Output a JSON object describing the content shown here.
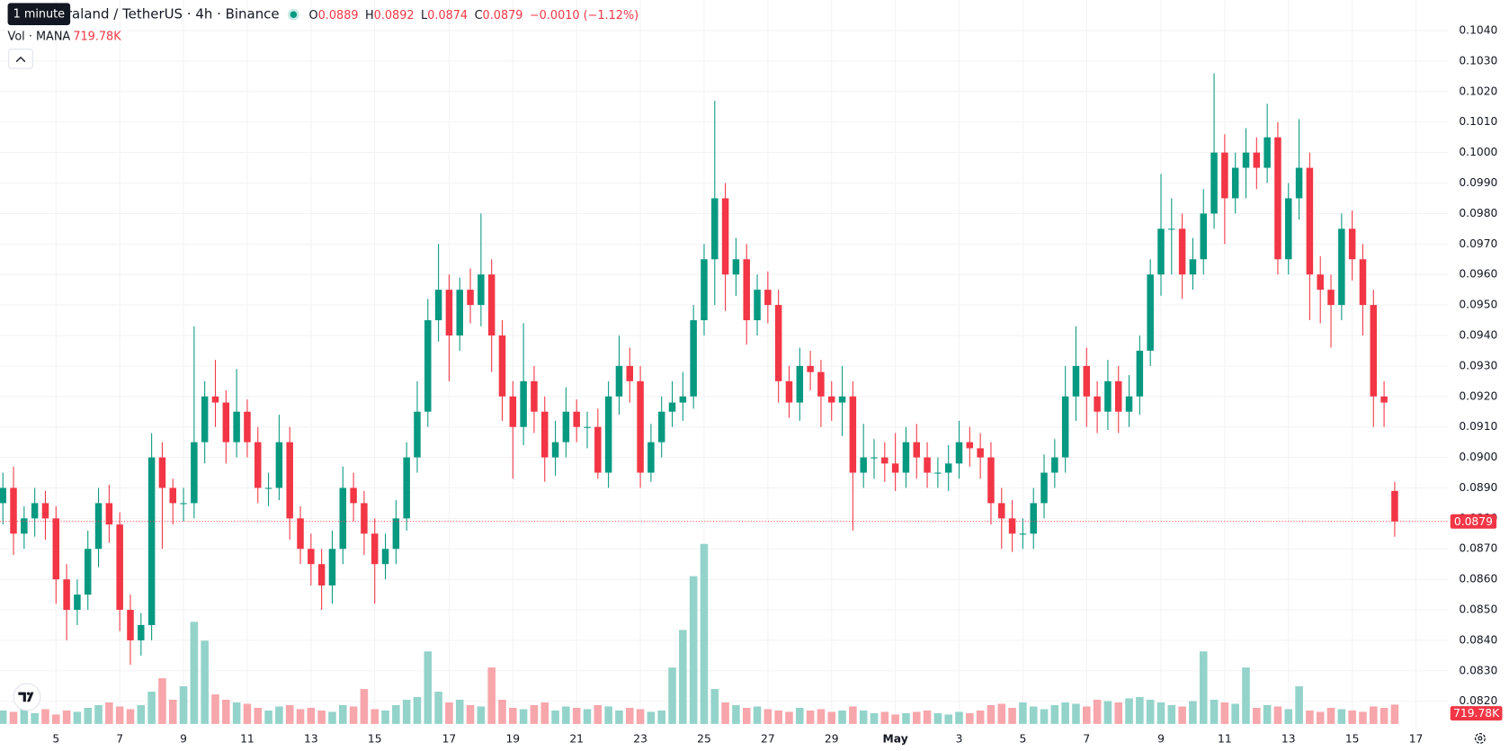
{
  "chart_data": {
    "type": "candlestick",
    "title": "Decentraland / TetherUS · 4h · Binance",
    "tooltip": "1 minute",
    "ohlc_labels": [
      "O",
      "H",
      "L",
      "C"
    ],
    "change": "−0.0010 (−1.12%)",
    "volume_title": "Vol · MANA",
    "up_color": "#089981",
    "down_color": "#f23645",
    "volume_up_color": "#93d3ca",
    "volume_down_color": "#f7a6ab",
    "grid": true,
    "categories": [
      null,
      null,
      null,
      null,
      null,
      "5",
      null,
      null,
      null,
      null,
      null,
      "7",
      null,
      null,
      null,
      null,
      null,
      "9",
      null,
      null,
      null,
      null,
      null,
      "11",
      null,
      null,
      null,
      null,
      null,
      "13",
      null,
      null,
      null,
      null,
      null,
      "15",
      null,
      null,
      null,
      null,
      null,
      null,
      "17",
      null,
      null,
      null,
      null,
      null,
      "19",
      null,
      null,
      null,
      null,
      null,
      "21",
      null,
      null,
      null,
      null,
      null,
      "23",
      null,
      null,
      null,
      null,
      null,
      "25",
      null,
      null,
      null,
      null,
      null,
      "27",
      null,
      null,
      null,
      null,
      null,
      "29",
      null,
      null,
      null,
      null,
      null,
      "May",
      null,
      null,
      null,
      null,
      null,
      "3",
      null,
      null,
      null,
      null,
      null,
      "5",
      null,
      null,
      null,
      null,
      null,
      "7",
      null,
      null,
      null,
      null,
      null,
      null,
      "9",
      null,
      null,
      null,
      null,
      null,
      "11",
      null,
      null,
      null,
      null,
      null,
      "13",
      null,
      null,
      null,
      null,
      null,
      "15",
      null,
      null,
      null,
      null,
      null,
      "17"
    ],
    "open": [
      0.0885,
      0.089,
      0.0875,
      0.088,
      0.0885,
      0.088,
      0.086,
      0.085,
      0.0855,
      0.087,
      0.0885,
      0.0878,
      0.085,
      0.084,
      0.0845,
      0.09,
      0.089,
      0.0885,
      0.0885,
      0.0905,
      0.092,
      0.0918,
      0.0905,
      0.0915,
      0.0905,
      0.089,
      0.089,
      0.0905,
      0.088,
      0.087,
      0.0865,
      0.0858,
      0.087,
      0.089,
      0.0885,
      0.0875,
      0.0865,
      0.087,
      0.088,
      0.09,
      0.0915,
      0.0945,
      0.0955,
      0.094,
      0.0955,
      0.095,
      0.096,
      0.094,
      0.092,
      0.091,
      0.0925,
      0.0915,
      0.09,
      0.0905,
      0.0915,
      0.091,
      0.091,
      0.0895,
      0.092,
      0.093,
      0.0925,
      0.0895,
      0.0905,
      0.0915,
      0.0918,
      0.092,
      0.0945,
      0.0965,
      0.0985,
      0.096,
      0.0965,
      0.0945,
      0.0955,
      0.095,
      0.0925,
      0.0918,
      0.093,
      0.0928,
      0.092,
      0.0918,
      0.092,
      0.0895,
      0.09,
      0.09,
      0.0898,
      0.0895,
      0.0905,
      0.09,
      0.0895,
      0.0895,
      0.0898,
      0.0905,
      0.0903,
      0.09,
      0.0885,
      0.088,
      0.0875,
      0.0875,
      0.0885,
      0.0895,
      0.09,
      0.092,
      0.093,
      0.092,
      0.0915,
      0.0925,
      0.0915,
      0.092,
      0.0935,
      0.096,
      0.0975,
      0.0975,
      0.096,
      0.0965,
      0.098,
      0.1,
      0.0985,
      0.0995,
      0.1,
      0.0995,
      0.1005,
      0.0965,
      0.0985,
      0.0995,
      0.096,
      0.0955,
      0.095,
      0.0975,
      0.0965,
      0.095,
      0.092,
      0.0889,
      null,
      null
    ],
    "high": [
      0.0895,
      0.0897,
      0.0884,
      0.089,
      0.0889,
      0.0884,
      0.0865,
      0.086,
      0.0876,
      0.089,
      0.0891,
      0.0882,
      0.0855,
      0.0849,
      0.0908,
      0.0905,
      0.0893,
      0.089,
      0.0943,
      0.0925,
      0.0932,
      0.0922,
      0.0929,
      0.0919,
      0.091,
      0.0895,
      0.0914,
      0.091,
      0.0884,
      0.0875,
      0.087,
      0.0876,
      0.0897,
      0.0895,
      0.0889,
      0.088,
      0.0875,
      0.0886,
      0.0905,
      0.0925,
      0.0952,
      0.097,
      0.096,
      0.0959,
      0.0962,
      0.098,
      0.0965,
      0.0945,
      0.0925,
      0.0944,
      0.093,
      0.092,
      0.0912,
      0.0923,
      0.0919,
      0.0915,
      0.0916,
      0.0925,
      0.094,
      0.0936,
      0.093,
      0.0911,
      0.092,
      0.0925,
      0.0928,
      0.095,
      0.097,
      0.1017,
      0.099,
      0.0972,
      0.097,
      0.096,
      0.0961,
      0.0955,
      0.093,
      0.0936,
      0.0935,
      0.0932,
      0.0925,
      0.093,
      0.0925,
      0.0911,
      0.0906,
      0.0905,
      0.0908,
      0.091,
      0.0911,
      0.0905,
      0.09,
      0.0904,
      0.0912,
      0.091,
      0.0908,
      0.0905,
      0.089,
      0.0886,
      0.088,
      0.089,
      0.0901,
      0.0906,
      0.093,
      0.0943,
      0.0936,
      0.0925,
      0.0932,
      0.093,
      0.0927,
      0.094,
      0.0965,
      0.0993,
      0.0985,
      0.098,
      0.0972,
      0.0988,
      0.1026,
      0.1006,
      0.1,
      0.1008,
      0.1005,
      0.1016,
      0.101,
      0.099,
      0.1011,
      0.1,
      0.0966,
      0.096,
      0.098,
      0.0981,
      0.097,
      0.0955,
      0.0925,
      0.0892,
      null,
      null
    ],
    "low": [
      0.0878,
      0.0868,
      0.087,
      0.0874,
      0.0873,
      0.0852,
      0.084,
      0.0845,
      0.085,
      0.0864,
      0.0872,
      0.0843,
      0.0832,
      0.0835,
      0.084,
      0.087,
      0.0878,
      0.0879,
      0.088,
      0.0898,
      0.091,
      0.0898,
      0.09,
      0.09,
      0.0885,
      0.0884,
      0.0886,
      0.0873,
      0.0865,
      0.0858,
      0.085,
      0.0852,
      0.0865,
      0.0879,
      0.0868,
      0.0852,
      0.086,
      0.0865,
      0.0876,
      0.0895,
      0.091,
      0.0938,
      0.0925,
      0.0935,
      0.0944,
      0.0943,
      0.0928,
      0.0912,
      0.0893,
      0.0904,
      0.0908,
      0.0892,
      0.0894,
      0.09,
      0.0905,
      0.0903,
      0.0893,
      0.089,
      0.0914,
      0.0918,
      0.089,
      0.0892,
      0.09,
      0.091,
      0.0912,
      0.0916,
      0.094,
      0.095,
      0.0948,
      0.0953,
      0.0937,
      0.094,
      0.0944,
      0.0918,
      0.0913,
      0.0912,
      0.0922,
      0.091,
      0.0912,
      0.0907,
      0.0876,
      0.089,
      0.0893,
      0.0892,
      0.0889,
      0.089,
      0.0893,
      0.089,
      0.089,
      0.0889,
      0.0893,
      0.0897,
      0.0893,
      0.0878,
      0.087,
      0.0869,
      0.087,
      0.087,
      0.088,
      0.089,
      0.0895,
      0.0912,
      0.091,
      0.0908,
      0.0909,
      0.0908,
      0.091,
      0.0914,
      0.093,
      0.0953,
      0.096,
      0.0952,
      0.0955,
      0.096,
      0.0975,
      0.097,
      0.098,
      0.0985,
      0.0988,
      0.099,
      0.096,
      0.096,
      0.0978,
      0.0945,
      0.0944,
      0.0936,
      0.0945,
      0.0958,
      0.094,
      0.091,
      0.091,
      0.0874,
      null,
      null
    ],
    "close": [
      0.089,
      0.0875,
      0.088,
      0.0885,
      0.088,
      0.086,
      0.085,
      0.0855,
      0.087,
      0.0885,
      0.0878,
      0.085,
      0.084,
      0.0845,
      0.09,
      0.089,
      0.0885,
      0.0885,
      0.0905,
      0.092,
      0.0918,
      0.0905,
      0.0915,
      0.0905,
      0.089,
      0.089,
      0.0905,
      0.088,
      0.087,
      0.0865,
      0.0858,
      0.087,
      0.089,
      0.0885,
      0.0875,
      0.0865,
      0.087,
      0.088,
      0.09,
      0.0915,
      0.0945,
      0.0955,
      0.094,
      0.0955,
      0.095,
      0.096,
      0.094,
      0.092,
      0.091,
      0.0925,
      0.0915,
      0.09,
      0.0905,
      0.0915,
      0.091,
      0.091,
      0.0895,
      0.092,
      0.093,
      0.0925,
      0.0895,
      0.0905,
      0.0915,
      0.0918,
      0.092,
      0.0945,
      0.0965,
      0.0985,
      0.096,
      0.0965,
      0.0945,
      0.0955,
      0.095,
      0.0925,
      0.0918,
      0.093,
      0.0928,
      0.092,
      0.0918,
      0.092,
      0.0895,
      0.09,
      0.09,
      0.0898,
      0.0895,
      0.0905,
      0.09,
      0.0895,
      0.0895,
      0.0898,
      0.0905,
      0.0903,
      0.09,
      0.0885,
      0.088,
      0.0875,
      0.0875,
      0.0885,
      0.0895,
      0.09,
      0.092,
      0.093,
      0.092,
      0.0915,
      0.0925,
      0.0915,
      0.092,
      0.0935,
      0.096,
      0.0975,
      0.0975,
      0.096,
      0.0965,
      0.098,
      0.1,
      0.0985,
      0.0995,
      0.1,
      0.0995,
      0.1005,
      0.0965,
      0.0985,
      0.0995,
      0.096,
      0.0955,
      0.095,
      0.0975,
      0.0965,
      0.095,
      0.092,
      0.0918,
      0.0879,
      null,
      null
    ],
    "volume": [
      500000,
      450000,
      600000,
      400000,
      550000,
      350000,
      500000,
      450000,
      600000,
      700000,
      800000,
      650000,
      550000,
      700000,
      1200000,
      1700000,
      900000,
      1400000,
      3800000,
      3100000,
      1100000,
      900000,
      800000,
      750000,
      600000,
      500000,
      650000,
      700000,
      550000,
      600000,
      500000,
      450000,
      700000,
      650000,
      1300000,
      550000,
      500000,
      700000,
      900000,
      1000000,
      2700000,
      1200000,
      800000,
      900000,
      700000,
      650000,
      2100000,
      900000,
      600000,
      550000,
      700000,
      800000,
      500000,
      650000,
      600000,
      550000,
      700000,
      650000,
      500000,
      600000,
      550000,
      450000,
      500000,
      2100000,
      3500000,
      5500000,
      6700000,
      1300000,
      800000,
      700000,
      600000,
      650000,
      550000,
      500000,
      450000,
      600000,
      500000,
      550000,
      450000,
      500000,
      650000,
      500000,
      400000,
      450000,
      350000,
      400000,
      450000,
      500000,
      400000,
      350000,
      450000,
      400000,
      500000,
      700000,
      750000,
      600000,
      800000,
      650000,
      550000,
      700000,
      800000,
      750000,
      650000,
      900000,
      850000,
      800000,
      950000,
      1000000,
      900000,
      800000,
      700000,
      650000,
      850000,
      2700000,
      900000,
      800000,
      750000,
      2100000,
      600000,
      700000,
      650000,
      550000,
      1400000,
      500000,
      450000,
      600000,
      550000,
      500000,
      450000,
      650000,
      600000,
      719780,
      null,
      null
    ],
    "volume_value_labels": [
      null,
      null,
      null,
      null,
      null,
      null,
      null,
      null,
      null,
      null,
      null,
      null,
      null,
      null,
      null,
      null,
      null,
      null,
      null,
      null,
      null,
      null,
      null,
      null,
      null,
      null,
      null,
      null,
      null,
      null,
      null,
      null,
      null,
      null,
      null,
      null,
      null,
      null,
      null,
      null,
      null,
      null,
      null,
      null,
      null,
      null,
      null,
      null,
      null,
      null,
      null,
      null,
      null,
      null,
      null,
      null,
      null,
      null,
      null,
      null,
      null,
      null,
      null,
      null,
      null,
      null,
      null,
      null,
      null,
      null,
      null,
      null,
      null,
      null,
      null,
      null,
      null,
      null,
      null,
      null,
      null,
      null,
      null,
      null,
      null,
      null,
      null,
      null,
      null,
      null,
      null,
      null,
      null,
      null,
      null,
      null,
      null,
      null,
      null,
      null,
      null,
      null,
      null,
      null,
      null,
      null,
      null,
      null,
      null,
      null,
      null,
      null,
      null,
      null,
      null,
      null,
      null,
      null,
      null,
      null,
      null,
      null,
      null,
      null,
      null,
      null,
      null,
      null,
      null,
      null,
      null,
      "719.78K",
      null,
      null
    ],
    "ylim": [
      0.0811,
      0.105
    ],
    "yticks": [
      {
        "value": 0.104,
        "label": "0.1040"
      },
      {
        "value": 0.103,
        "label": "0.1030"
      },
      {
        "value": 0.102,
        "label": "0.1020"
      },
      {
        "value": 0.101,
        "label": "0.1010"
      },
      {
        "value": 0.1,
        "label": "0.1000"
      },
      {
        "value": 0.099,
        "label": "0.0990"
      },
      {
        "value": 0.098,
        "label": "0.0980"
      },
      {
        "value": 0.097,
        "label": "0.0970"
      },
      {
        "value": 0.096,
        "label": "0.0960"
      },
      {
        "value": 0.095,
        "label": "0.0950"
      },
      {
        "value": 0.094,
        "label": "0.0940"
      },
      {
        "value": 0.093,
        "label": "0.0930"
      },
      {
        "value": 0.092,
        "label": "0.0920"
      },
      {
        "value": 0.091,
        "label": "0.0910"
      },
      {
        "value": 0.09,
        "label": "0.0900"
      },
      {
        "value": 0.089,
        "label": "0.0890"
      },
      {
        "value": 0.088,
        "label": "0.0880"
      },
      {
        "value": 0.087,
        "label": "0.0870"
      },
      {
        "value": 0.086,
        "label": "0.0860"
      },
      {
        "value": 0.085,
        "label": "0.0850"
      },
      {
        "value": 0.084,
        "label": "0.0840"
      },
      {
        "value": 0.083,
        "label": "0.0830"
      },
      {
        "value": 0.082,
        "label": "0.0820"
      }
    ]
  }
}
